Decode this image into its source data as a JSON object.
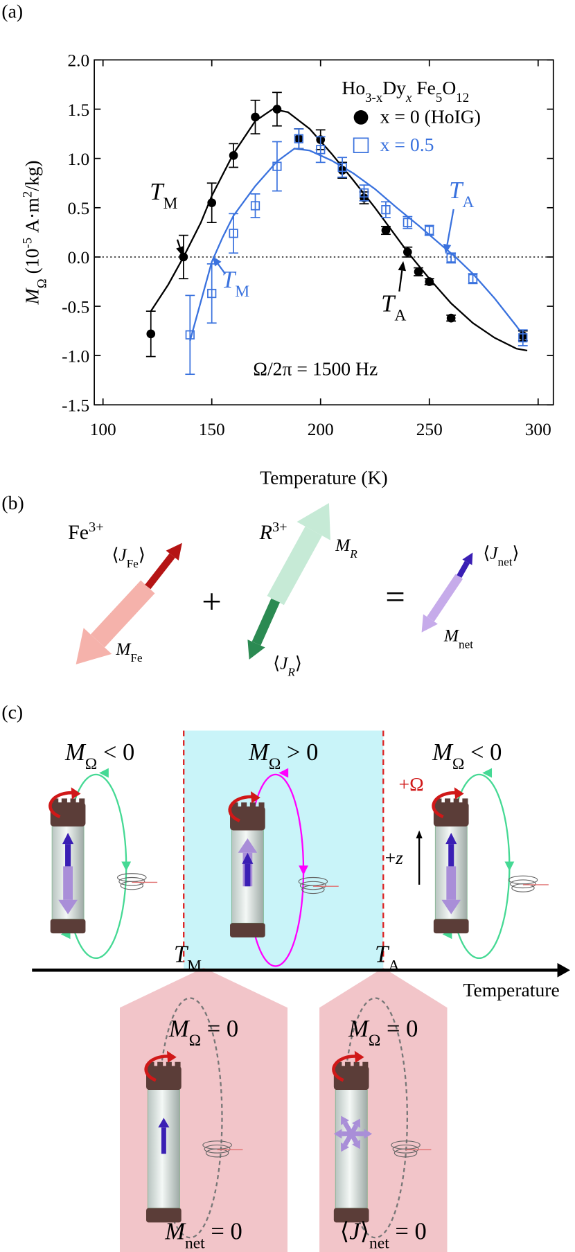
{
  "chart_data": {
    "type": "scatter",
    "panel_label": "(a)",
    "x_label": "Temperature (K)",
    "y_label": [
      {
        "t": "M",
        "i": true
      },
      {
        "t": "Ω",
        "sub": true
      },
      {
        "t": " (10"
      },
      {
        "t": "-5",
        "sup": true
      },
      {
        "t": " A·m"
      },
      {
        "t": "2",
        "sup": true
      },
      {
        "t": "/kg)"
      }
    ],
    "legend_title": [
      {
        "t": "Ho"
      },
      {
        "t": "3-x",
        "sub": true
      },
      {
        "t": "Dy"
      },
      {
        "t": "x",
        "sub": true,
        "i": true
      },
      {
        "t": " Fe"
      },
      {
        "t": "5",
        "sub": true
      },
      {
        "t": "O"
      },
      {
        "t": "12",
        "sub": true
      }
    ],
    "annotation": [
      {
        "t": "Ω/2π = 1500 Hz"
      }
    ],
    "markers": [
      {
        "text": [
          {
            "t": "T",
            "i": true
          },
          {
            "t": "M",
            "sub": true
          }
        ],
        "color": "#000000"
      },
      {
        "text": [
          {
            "t": "T",
            "i": true
          },
          {
            "t": "M",
            "sub": true
          }
        ],
        "color": "#3a72de"
      },
      {
        "text": [
          {
            "t": "T",
            "i": true
          },
          {
            "t": "A",
            "sub": true
          }
        ],
        "color": "#000000"
      },
      {
        "text": [
          {
            "t": "T",
            "i": true
          },
          {
            "t": "A",
            "sub": true
          }
        ],
        "color": "#3a72de"
      }
    ],
    "xlim": [
      96,
      307
    ],
    "ylim": [
      -1.5,
      2.0
    ],
    "xticks": [
      100,
      150,
      200,
      250,
      300
    ],
    "yticks": [
      {
        "value": 2.0,
        "label": "2.0"
      },
      {
        "value": 1.5,
        "label": "1.5"
      },
      {
        "value": 1.0,
        "label": "1.0"
      },
      {
        "value": 0.5,
        "label": "0.5"
      },
      {
        "value": 0.0,
        "label": "0.0"
      },
      {
        "value": -0.5,
        "label": "-0.5"
      },
      {
        "value": -1.0,
        "label": "-1.0"
      },
      {
        "value": -1.5,
        "label": "-1.5"
      }
    ],
    "zero_line": true,
    "series": [
      {
        "name": "x = 0 (HoIG)",
        "color": "#000000",
        "marker": "circle",
        "x": [
          122,
          137,
          150,
          160,
          170,
          180,
          190,
          200,
          210,
          220,
          230,
          240,
          245,
          250,
          260,
          293
        ],
        "values": [
          -0.78,
          0.0,
          0.55,
          1.03,
          1.42,
          1.5,
          1.2,
          1.19,
          0.88,
          0.6,
          0.27,
          0.05,
          -0.15,
          -0.25,
          -0.62,
          -0.8
        ],
        "errors": [
          0.23,
          0.22,
          0.2,
          0.12,
          0.17,
          0.17,
          0.1,
          0.1,
          0.08,
          0.06,
          0.04,
          0.05,
          0.04,
          0.03,
          0.03,
          0.05
        ]
      },
      {
        "name": "x = 0.5",
        "color": "#3a72de",
        "marker": "square",
        "x": [
          140,
          150,
          160,
          170,
          180,
          190,
          200,
          210,
          220,
          230,
          240,
          250,
          260,
          270,
          293
        ],
        "values": [
          -0.79,
          -0.37,
          0.24,
          0.52,
          0.92,
          1.2,
          1.09,
          0.91,
          0.65,
          0.48,
          0.35,
          0.27,
          -0.01,
          -0.22,
          -0.82
        ],
        "errors": [
          0.4,
          0.3,
          0.2,
          0.12,
          0.25,
          0.1,
          0.13,
          0.1,
          0.08,
          0.08,
          0.06,
          0.05,
          0.05,
          0.05,
          0.08
        ]
      }
    ],
    "fits": [
      {
        "color": "#000000",
        "x": [
          122,
          130,
          137,
          145,
          150,
          160,
          170,
          178,
          185,
          195,
          205,
          215,
          225,
          235,
          240,
          250,
          260,
          270,
          280,
          290,
          295
        ],
        "values": [
          -0.55,
          -0.28,
          0.0,
          0.35,
          0.62,
          1.05,
          1.38,
          1.5,
          1.47,
          1.3,
          1.05,
          0.78,
          0.5,
          0.2,
          0.05,
          -0.22,
          -0.47,
          -0.67,
          -0.82,
          -0.93,
          -0.95
        ]
      },
      {
        "color": "#3a72de",
        "x": [
          140,
          145,
          150,
          155,
          160,
          170,
          180,
          188,
          195,
          205,
          215,
          225,
          235,
          245,
          255,
          262,
          270,
          280,
          290,
          295
        ],
        "values": [
          -0.85,
          -0.45,
          -0.05,
          0.2,
          0.42,
          0.72,
          0.97,
          1.1,
          1.08,
          0.98,
          0.85,
          0.69,
          0.5,
          0.32,
          0.13,
          0.0,
          -0.17,
          -0.42,
          -0.7,
          -0.85
        ]
      }
    ]
  },
  "panel_b": {
    "label": "(b)",
    "fe": [
      {
        "t": "Fe"
      },
      {
        "t": "3+",
        "sup": true
      }
    ],
    "r": [
      {
        "t": "R",
        "i": true
      },
      {
        "t": "3+",
        "sup": true
      }
    ],
    "j_fe": [
      {
        "t": "⟨"
      },
      {
        "t": "J",
        "i": true
      },
      {
        "t": "Fe",
        "sub": true
      },
      {
        "t": "⟩"
      }
    ],
    "m_fe": [
      {
        "t": "M",
        "i": true
      },
      {
        "t": "Fe",
        "sub": true
      }
    ],
    "plus": [
      {
        "t": "+"
      }
    ],
    "m_r": [
      {
        "t": "M",
        "i": true
      },
      {
        "t": "R",
        "sub": true,
        "i": true
      }
    ],
    "j_r": [
      {
        "t": "⟨"
      },
      {
        "t": "J",
        "i": true
      },
      {
        "t": "R",
        "sub": true,
        "i": true
      },
      {
        "t": "⟩"
      }
    ],
    "equals": [
      {
        "t": "="
      }
    ],
    "j_net": [
      {
        "t": "⟨"
      },
      {
        "t": "J",
        "i": true
      },
      {
        "t": "net",
        "sub": true
      },
      {
        "t": "⟩"
      }
    ],
    "m_net": [
      {
        "t": "M",
        "i": true
      },
      {
        "t": "net",
        "sub": true
      }
    ]
  },
  "panel_c": {
    "label": "(c)",
    "m_neg_left": [
      {
        "t": "M",
        "i": true
      },
      {
        "t": "Ω",
        "sub": true
      },
      {
        "t": " < 0"
      }
    ],
    "m_pos": [
      {
        "t": "M",
        "i": true
      },
      {
        "t": "Ω",
        "sub": true
      },
      {
        "t": " > 0"
      }
    ],
    "m_neg_right": [
      {
        "t": "M",
        "i": true
      },
      {
        "t": "Ω",
        "sub": true
      },
      {
        "t": " < 0"
      }
    ],
    "plus_omega": [
      {
        "t": "+Ω"
      }
    ],
    "plus_z": [
      {
        "t": "+"
      },
      {
        "t": "z",
        "i": true
      }
    ],
    "t_m": [
      {
        "t": "T",
        "i": true
      },
      {
        "t": "M",
        "sub": true
      }
    ],
    "t_a": [
      {
        "t": "T",
        "i": true
      },
      {
        "t": "A",
        "sub": true
      }
    ],
    "axis_label": [
      {
        "t": "Temperature"
      }
    ],
    "m_zero_left": [
      {
        "t": "M",
        "i": true
      },
      {
        "t": "Ω",
        "sub": true
      },
      {
        "t": " = 0"
      }
    ],
    "m_zero_right": [
      {
        "t": "M",
        "i": true
      },
      {
        "t": "Ω",
        "sub": true
      },
      {
        "t": " = 0"
      }
    ],
    "m_net_zero": [
      {
        "t": "M",
        "i": true
      },
      {
        "t": "net",
        "sub": true
      },
      {
        "t": " = 0"
      }
    ],
    "j_net_zero": [
      {
        "t": "⟨"
      },
      {
        "t": "J",
        "i": true
      },
      {
        "t": "⟩"
      },
      {
        "t": "net",
        "sub": true
      },
      {
        "t": " = 0"
      }
    ]
  }
}
